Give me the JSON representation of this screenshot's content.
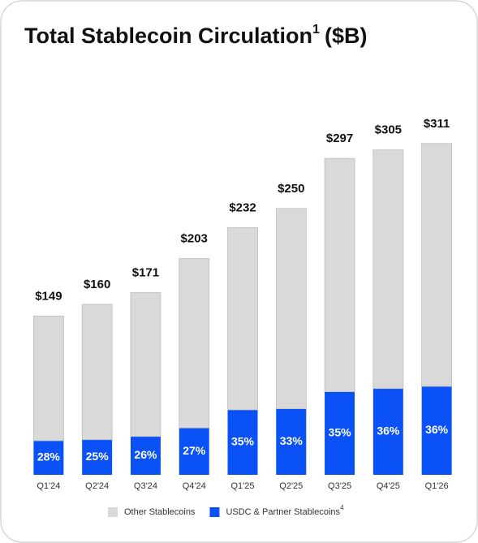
{
  "chart_data": {
    "type": "stacked_bar",
    "title": "Total Stablecoin Circulation",
    "title_note": "1",
    "title_suffix": "($B)",
    "categories": [
      "Q1'24",
      "Q2'24",
      "Q3'24",
      "Q4'24",
      "Q1'25",
      "Q2'25",
      "Q3'25",
      "Q4'25",
      "Q1'26"
    ],
    "series": [
      {
        "name": "USDC & Partner Stablecoins",
        "note": "4",
        "color": "#0a52f5",
        "values": [
          32,
          33,
          36,
          44,
          61,
          62,
          78,
          81,
          83
        ]
      },
      {
        "name": "Other Stablecoins",
        "color": "#d9d9d9",
        "values": [
          117,
          127,
          135,
          159,
          171,
          188,
          219,
          224,
          228
        ]
      }
    ],
    "totals": {
      "values": [
        149,
        160,
        171,
        203,
        232,
        250,
        297,
        305,
        311
      ],
      "value_labels": [
        "$149",
        "$160",
        "$171",
        "$203",
        "$232",
        "$250",
        "$297",
        "$305",
        "$311"
      ]
    },
    "usdc_share": {
      "values": [
        28,
        25,
        26,
        27,
        35,
        33,
        35,
        36,
        36
      ],
      "value_labels": [
        "28%",
        "25%",
        "26%",
        "27%",
        "35%",
        "33%",
        "35%",
        "36%",
        "36%"
      ]
    },
    "ylim": [
      0,
      320
    ],
    "legend": "bottom"
  }
}
